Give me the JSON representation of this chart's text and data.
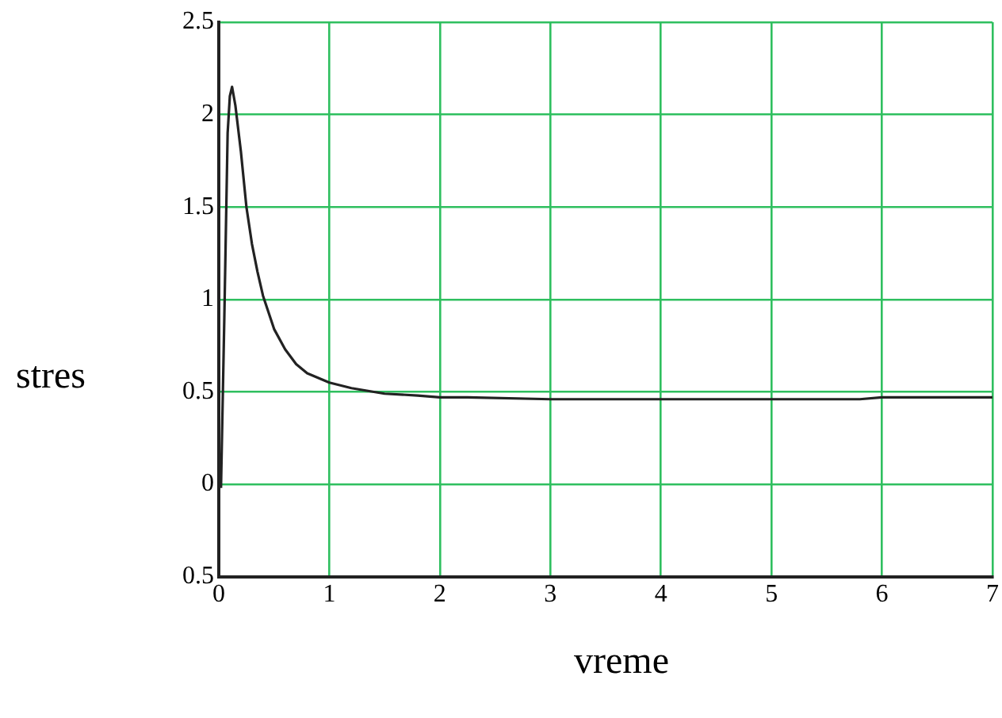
{
  "chart_data": {
    "type": "line",
    "xlabel": "vreme",
    "ylabel": "stres",
    "series": [
      {
        "color": "#222222",
        "x": [
          0.02,
          0.05,
          0.08,
          0.1,
          0.12,
          0.15,
          0.2,
          0.25,
          0.3,
          0.35,
          0.4,
          0.5,
          0.6,
          0.7,
          0.8,
          1.0,
          1.2,
          1.5,
          1.8,
          2.0,
          2.25,
          3,
          4,
          5,
          5.8,
          6,
          7
        ],
        "values": [
          -0.02,
          0.9,
          1.9,
          2.1,
          2.15,
          2.05,
          1.8,
          1.5,
          1.3,
          1.15,
          1.02,
          0.84,
          0.73,
          0.65,
          0.6,
          0.55,
          0.52,
          0.49,
          0.48,
          0.47,
          0.47,
          0.46,
          0.46,
          0.46,
          0.46,
          0.47,
          0.47
        ]
      }
    ],
    "xlim": [
      0,
      7
    ],
    "xticks": [
      0,
      1,
      2,
      3,
      4,
      5,
      6,
      7
    ],
    "ylim": [
      -0.5,
      2.5
    ],
    "yticks": [
      {
        "value": -0.5,
        "label": "0.5"
      },
      0,
      0.5,
      1,
      1.5,
      2,
      2.5
    ],
    "grid": true,
    "legend": false,
    "marker": "none",
    "line_style": "solid"
  }
}
